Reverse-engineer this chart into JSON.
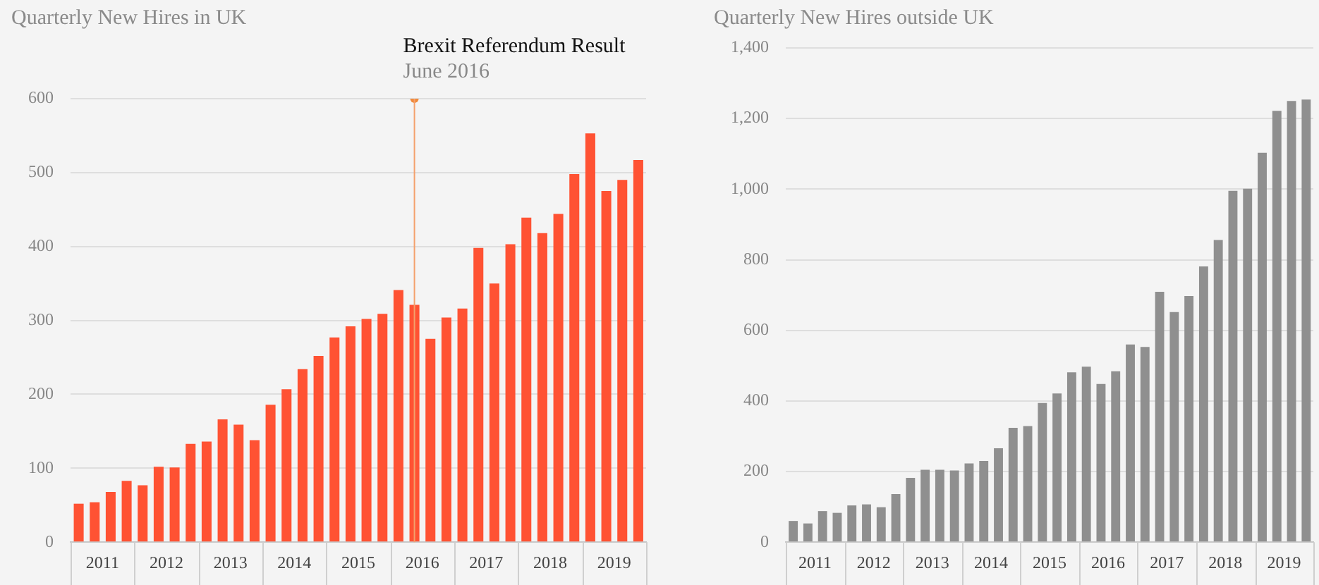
{
  "chart_data": [
    {
      "type": "bar",
      "title": "Quarterly New Hires in UK",
      "x": [
        "2011-03",
        "2011-06",
        "2011-09",
        "2011-12",
        "2012-03",
        "2012-06",
        "2012-09",
        "2012-12",
        "2013-03",
        "2013-06",
        "2013-09",
        "2013-12",
        "2014-03",
        "2014-06",
        "2014-09",
        "2014-12",
        "2015-03",
        "2015-06",
        "2015-09",
        "2015-12",
        "2016-03",
        "2016-06",
        "2016-09",
        "2016-12",
        "2017-03",
        "2017-06",
        "2017-09",
        "2017-12",
        "2018-03",
        "2018-06",
        "2018-09",
        "2018-12",
        "2019-03",
        "2019-06",
        "2019-09",
        "2019-12"
      ],
      "series": [
        {
          "values": [
            52,
            54,
            68,
            83,
            77,
            102,
            101,
            133,
            136,
            166,
            159,
            138,
            186,
            207,
            234,
            252,
            277,
            292,
            302,
            309,
            341,
            321,
            275,
            304,
            316,
            398,
            350,
            403,
            439,
            418,
            444,
            498,
            553,
            475,
            490,
            517
          ],
          "color": "#ff5233"
        },
        {
          "type": "scatter",
          "x": [
            "2016-06"
          ],
          "values": [
            600
          ],
          "color": "#f08a3c"
        }
      ],
      "marker": "circle",
      "xlim": [
        "2011-01-15",
        "2020-01-15"
      ],
      "xticks": [
        {
          "value": "2011-07-15",
          "label": "2011"
        },
        {
          "value": "2012-07-15",
          "label": "2012"
        },
        {
          "value": "2013-07-15",
          "label": "2013"
        },
        {
          "value": "2014-07-15",
          "label": "2014"
        },
        {
          "value": "2015-07-15",
          "label": "2015"
        },
        {
          "value": "2016-07-15",
          "label": "2016"
        },
        {
          "value": "2017-07-15",
          "label": "2017"
        },
        {
          "value": "2018-07-15",
          "label": "2018"
        },
        {
          "value": "2019-07-15",
          "label": "2019"
        }
      ],
      "ylim": [
        0,
        600
      ],
      "yticks": [
        0,
        100,
        200,
        300,
        400,
        500,
        600
      ],
      "grid": "y",
      "legend": false,
      "ref_lines": [
        {
          "axis": "x",
          "value": "2016-06",
          "label": "Brexit Referendum Result",
          "color": "#f4a06c"
        }
      ],
      "annotations": [
        "June 2016"
      ]
    },
    {
      "type": "bar",
      "title": "Quarterly New Hires outside UK",
      "x": [
        "2011-03",
        "2011-06",
        "2011-09",
        "2011-12",
        "2012-03",
        "2012-06",
        "2012-09",
        "2012-12",
        "2013-03",
        "2013-06",
        "2013-09",
        "2013-12",
        "2014-03",
        "2014-06",
        "2014-09",
        "2014-12",
        "2015-03",
        "2015-06",
        "2015-09",
        "2015-12",
        "2016-03",
        "2016-06",
        "2016-09",
        "2016-12",
        "2017-03",
        "2017-06",
        "2017-09",
        "2017-12",
        "2018-03",
        "2018-06",
        "2018-09",
        "2018-12",
        "2019-03",
        "2019-06",
        "2019-09",
        "2019-12"
      ],
      "values": [
        60,
        53,
        88,
        83,
        104,
        107,
        99,
        136,
        182,
        205,
        205,
        203,
        223,
        230,
        266,
        324,
        329,
        394,
        421,
        481,
        497,
        448,
        484,
        560,
        553,
        709,
        652,
        697,
        781,
        856,
        995,
        1001,
        1103,
        1222,
        1250,
        1254
      ],
      "color": "#8f8f8f",
      "xlim": [
        "2011-01-15",
        "2020-01-15"
      ],
      "xticks": [
        {
          "value": "2011-07-15",
          "label": "2011"
        },
        {
          "value": "2012-07-15",
          "label": "2012"
        },
        {
          "value": "2013-07-15",
          "label": "2013"
        },
        {
          "value": "2014-07-15",
          "label": "2014"
        },
        {
          "value": "2015-07-15",
          "label": "2015"
        },
        {
          "value": "2016-07-15",
          "label": "2016"
        },
        {
          "value": "2017-07-15",
          "label": "2017"
        },
        {
          "value": "2018-07-15",
          "label": "2018"
        },
        {
          "value": "2019-07-15",
          "label": "2019"
        }
      ],
      "ylim": [
        0,
        1400
      ],
      "yticks": [
        {
          "value": 0,
          "label": "0"
        },
        {
          "value": 200,
          "label": "200"
        },
        {
          "value": 400,
          "label": "400"
        },
        {
          "value": 600,
          "label": "600"
        },
        {
          "value": 800,
          "label": "800"
        },
        {
          "value": 1000,
          "label": "1,000"
        },
        {
          "value": 1200,
          "label": "1,200"
        },
        {
          "value": 1400,
          "label": "1,400"
        }
      ],
      "grid": "y",
      "legend": false
    }
  ]
}
